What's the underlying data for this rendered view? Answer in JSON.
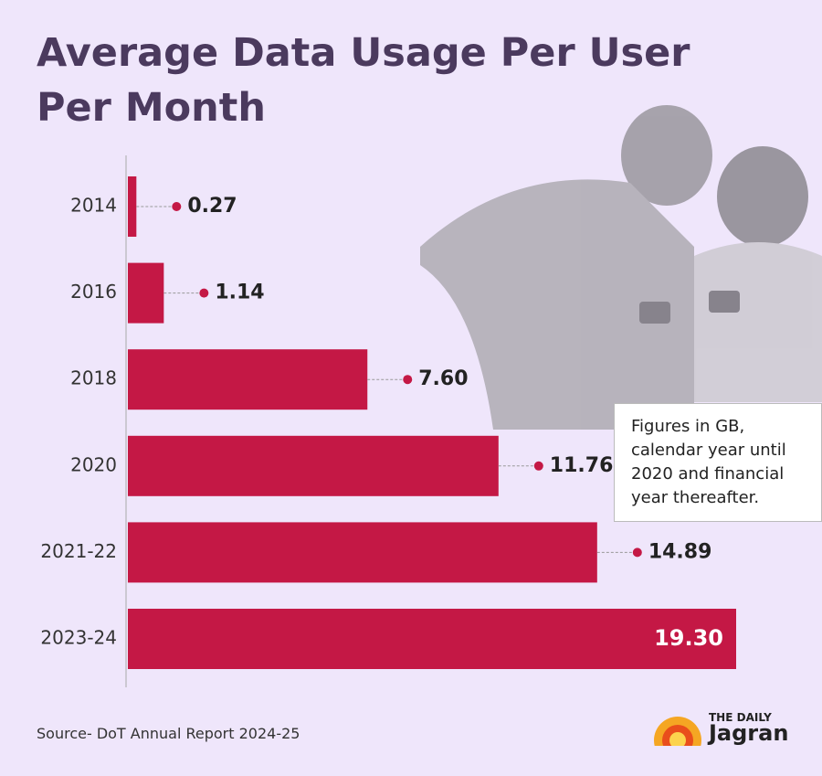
{
  "chart_data": {
    "type": "bar",
    "orientation": "horizontal",
    "title": "Average Data Usage Per User Per Month",
    "categories": [
      "2014",
      "2016",
      "2018",
      "2020",
      "2021-22",
      "2023-24"
    ],
    "values": [
      0.27,
      1.14,
      7.6,
      11.76,
      14.89,
      19.3
    ],
    "value_labels": [
      "0.27",
      "1.14",
      "7.60",
      "11.76",
      "14.89",
      "19.30"
    ],
    "color": "#c41845",
    "annotation": "Figures in GB, calendar year until 2020 and financial year thereafter.",
    "source": "Source- DoT Annual Report 2024-25"
  },
  "brand": {
    "top": "THE DAILY",
    "name": "Jagran"
  }
}
